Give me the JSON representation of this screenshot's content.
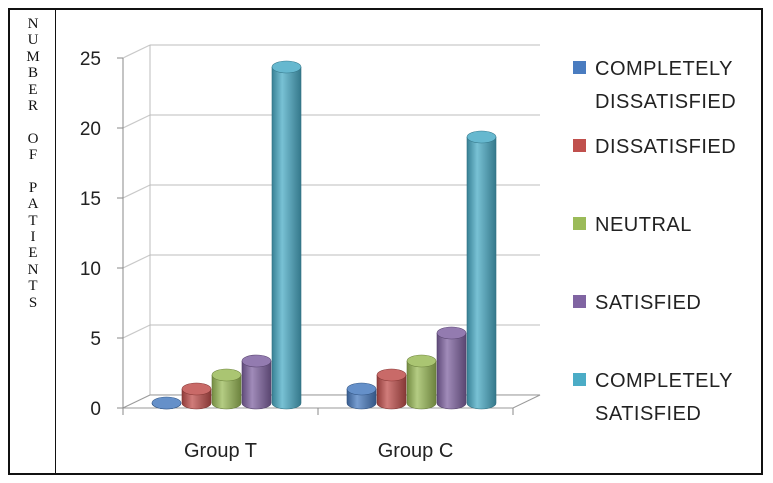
{
  "chart_data": {
    "type": "bar",
    "title": "",
    "ylabel": "NUMBER OF PATIENTS",
    "xlabel": "",
    "categories": [
      "Group T",
      "Group C"
    ],
    "ylim": [
      0,
      25
    ],
    "yticks": [
      0,
      5,
      10,
      15,
      20,
      25
    ],
    "grid": true,
    "legend_position": "right",
    "series": [
      {
        "name": "COMPLETELY DISSATISFIED",
        "color": "#4a7cc0",
        "values": [
          0,
          1
        ]
      },
      {
        "name": "DISSATISFIED",
        "color": "#c0504d",
        "values": [
          1,
          2
        ]
      },
      {
        "name": "NEUTRAL",
        "color": "#9bbb59",
        "values": [
          2,
          3
        ]
      },
      {
        "name": "SATISFIED",
        "color": "#8064a2",
        "values": [
          3,
          5
        ]
      },
      {
        "name": "COMPLETELY SATISFIED",
        "color": "#4bacc6",
        "values": [
          24,
          19
        ]
      }
    ],
    "legend_lines": [
      [
        "COMPLETELY",
        "DISSATISFIED"
      ],
      [
        "DISSATISFIED"
      ],
      [
        "NEUTRAL"
      ],
      [
        "SATISFIED"
      ],
      [
        "COMPLETELY",
        "SATISFIED"
      ]
    ]
  }
}
